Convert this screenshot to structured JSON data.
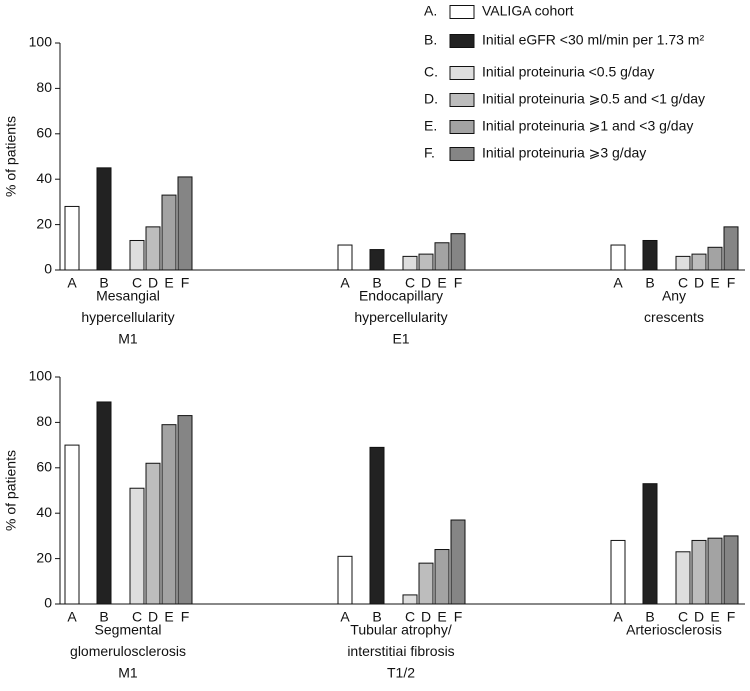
{
  "chart_data": [
    {
      "type": "bar",
      "y_label": "% of patients",
      "ylim": [
        0,
        100
      ],
      "yticks": [
        0,
        20,
        40,
        60,
        80,
        100
      ],
      "categories": [
        [
          "Mesangial",
          "hypercellularity",
          "M1"
        ],
        [
          "Endocapillary",
          "hypercellularity",
          "E1"
        ],
        [
          "Any",
          "crescents"
        ]
      ],
      "series": [
        {
          "key": "A.",
          "name": "VALIGA cohort",
          "letter": "A",
          "color": "#ffffff",
          "values": [
            28,
            11,
            11
          ]
        },
        {
          "key": "B.",
          "name": "Initial eGFR <30 ml/min per 1.73 m²",
          "letter": "B",
          "color": "#222222",
          "values": [
            45,
            9,
            13
          ]
        },
        {
          "key": "C.",
          "name": "Initial proteinuria <0.5 g/day",
          "letter": "C",
          "color": "#dedede",
          "values": [
            13,
            6,
            6
          ]
        },
        {
          "key": "D.",
          "name": "Initial proteinuria ⩾0.5 and <1 g/day",
          "letter": "D",
          "color": "#bdbdbd",
          "values": [
            19,
            7,
            7
          ]
        },
        {
          "key": "E.",
          "name": "Initial proteinuria ⩾1 and <3 g/day",
          "letter": "E",
          "color": "#a3a3a3",
          "values": [
            33,
            12,
            10
          ]
        },
        {
          "key": "F.",
          "name": "Initial proteinuria ⩾3 g/day",
          "letter": "F",
          "color": "#858585",
          "values": [
            41,
            16,
            19
          ]
        }
      ]
    },
    {
      "type": "bar",
      "y_label": "% of patients",
      "ylim": [
        0,
        100
      ],
      "yticks": [
        0,
        20,
        40,
        60,
        80,
        100
      ],
      "categories": [
        [
          "Segmental",
          "glomerulosclerosis",
          "M1"
        ],
        [
          "Tubular atrophy/",
          "interstitiai fibrosis",
          "T1/2"
        ],
        [
          "Arteriosclerosis"
        ]
      ],
      "series": [
        {
          "letter": "A",
          "color": "#ffffff",
          "values": [
            70,
            21,
            28
          ]
        },
        {
          "letter": "B",
          "color": "#222222",
          "values": [
            89,
            69,
            53
          ]
        },
        {
          "letter": "C",
          "color": "#dedede",
          "values": [
            51,
            4,
            23
          ]
        },
        {
          "letter": "D",
          "color": "#bdbdbd",
          "values": [
            62,
            18,
            28
          ]
        },
        {
          "letter": "E",
          "color": "#a3a3a3",
          "values": [
            79,
            24,
            29
          ]
        },
        {
          "letter": "F",
          "color": "#858585",
          "values": [
            83,
            37,
            30
          ]
        }
      ]
    }
  ]
}
